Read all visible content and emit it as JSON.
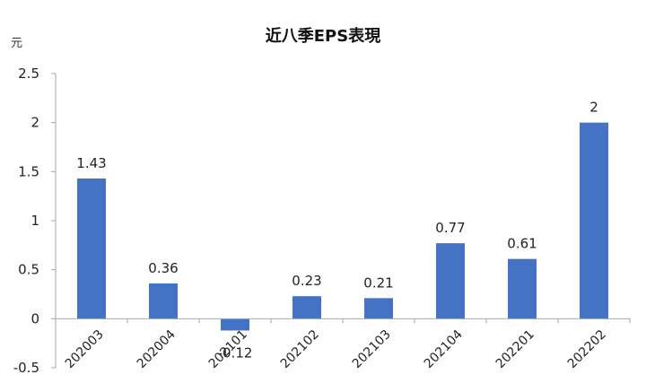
{
  "chart_data": {
    "type": "bar",
    "title": "近八季EPS表現",
    "unit_label": "元",
    "categories": [
      "202003",
      "202004",
      "202101",
      "202102",
      "202103",
      "202104",
      "202201",
      "202202"
    ],
    "values": [
      1.43,
      0.36,
      -0.12,
      0.23,
      0.21,
      0.77,
      0.61,
      2
    ],
    "value_labels": [
      "1.43",
      "0.36",
      "-0.12",
      "0.23",
      "0.21",
      "0.77",
      "0.61",
      "2"
    ],
    "ylim": [
      -0.5,
      2.5
    ],
    "yticks": [
      -0.5,
      0,
      0.5,
      1,
      1.5,
      2,
      2.5
    ],
    "ytick_labels": [
      "-0.5",
      "0",
      "0.5",
      "1",
      "1.5",
      "2",
      "2.5"
    ],
    "grid": false,
    "colors": {
      "bar": "#4472C4",
      "axis": "#a6a6a6"
    }
  }
}
